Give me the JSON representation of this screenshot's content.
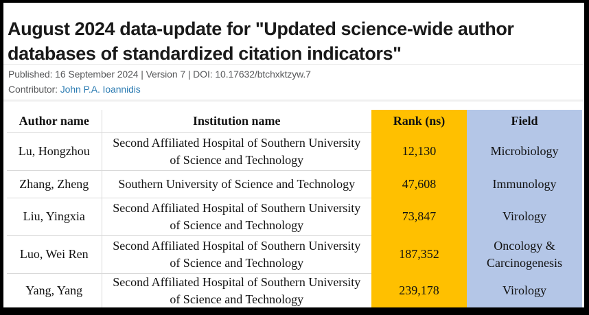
{
  "page": {
    "title": "August 2024 data-update for \"Updated science-wide author databases of standardized citation indicators\"",
    "published_line": "Published: 16 September 2024 | Version 7 | DOI: 10.17632/btchxktzyw.7",
    "contributor_label": "Contributor:",
    "contributor_name": "John P.A. Ioannidis"
  },
  "colors": {
    "rank_column_bg": "#FFC000",
    "field_column_bg": "#B4C6E7",
    "link": "#2E7DB3"
  },
  "table": {
    "headers": {
      "author": "Author name",
      "institution": "Institution name",
      "rank": "Rank (ns)",
      "field": "Field"
    },
    "rows": [
      {
        "author": "Lu, Hongzhou",
        "institution": "Second Affiliated Hospital of Southern University of Science and Technology",
        "rank": "12,130",
        "field": "Microbiology"
      },
      {
        "author": "Zhang, Zheng",
        "institution": "Southern University of Science and Technology",
        "rank": "47,608",
        "field": "Immunology"
      },
      {
        "author": "Liu, Yingxia",
        "institution": "Second Affiliated Hospital of Southern University of Science and Technology",
        "rank": "73,847",
        "field": "Virology"
      },
      {
        "author": "Luo, Wei Ren",
        "institution": "Second Affiliated Hospital of Southern University of Science and Technology",
        "rank": "187,352",
        "field": "Oncology & Carcinogenesis"
      },
      {
        "author": "Yang, Yang",
        "institution": "Second Affiliated Hospital of Southern University of Science and Technology",
        "rank": "239,178",
        "field": "Virology"
      }
    ]
  }
}
